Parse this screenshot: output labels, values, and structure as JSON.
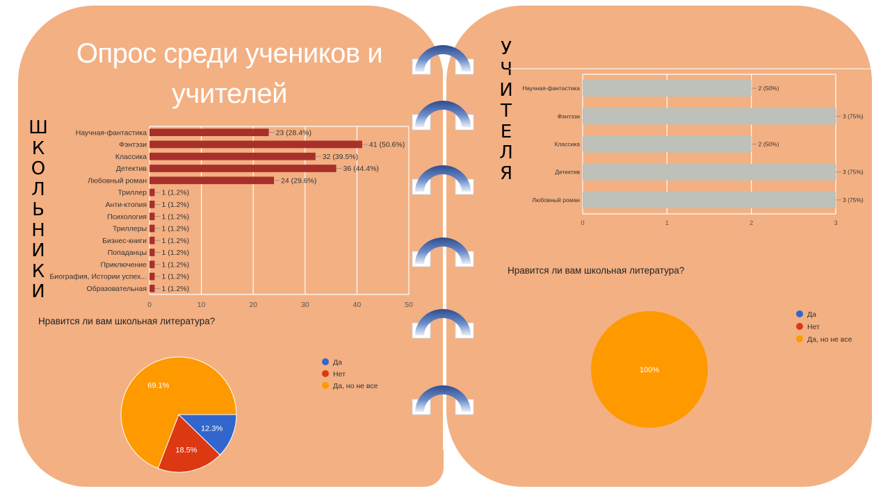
{
  "slide": {
    "title": "Опрос среди учеников и учителей",
    "students_label": "ШКОЛЬНИКИ",
    "teachers_label": "УЧИТЕЛЯ"
  },
  "colors": {
    "panel": "#f3b083",
    "student_bar": "#a8302b",
    "teacher_bar": "#bdc1b9",
    "pie_yes": "#3366cc",
    "pie_no": "#dc3912",
    "pie_partly": "#ff9900"
  },
  "chart_data": [
    {
      "type": "bar",
      "orientation": "horizontal",
      "categories": [
        "Научная-фантастика",
        "Фэнтэзи",
        "Классика",
        "Детектив",
        "Любовный роман",
        "Триллер",
        "Анти-ктопия",
        "Психология",
        "Триллеры",
        "Бизнес-книги",
        "Попаданцы",
        "Приключение",
        "Биография, Истории успех...",
        "Образовательная"
      ],
      "values": [
        23,
        41,
        32,
        36,
        24,
        1,
        1,
        1,
        1,
        1,
        1,
        1,
        1,
        1
      ],
      "data_labels": [
        "23 (28.4%)",
        "41 (50.6%)",
        "32 (39.5%)",
        "36 (44.4%)",
        "24 (29.6%)",
        "1 (1.2%)",
        "1 (1.2%)",
        "1 (1.2%)",
        "1 (1.2%)",
        "1 (1.2%)",
        "1 (1.2%)",
        "1 (1.2%)",
        "1 (1.2%)",
        "1 (1.2%)"
      ],
      "xlim": [
        0,
        50
      ],
      "xticks": [
        "0",
        "10",
        "20",
        "30",
        "40",
        "50"
      ],
      "grid": true
    },
    {
      "type": "pie",
      "title": "Нравится ли вам школьная литература?",
      "labels": [
        "Да",
        "Нет",
        "Да, но не все"
      ],
      "values": [
        12.3,
        18.5,
        69.1
      ],
      "slice_labels": [
        "12.3%",
        "18.5%",
        "69.1%"
      ],
      "legend_position": "right"
    },
    {
      "type": "bar",
      "orientation": "horizontal",
      "categories": [
        "Научная-фантастика",
        "Фэнтэзи",
        "Классика",
        "Детектив",
        "Любовный роман"
      ],
      "values": [
        2,
        3,
        2,
        3,
        3
      ],
      "data_labels": [
        "2 (50%)",
        "3 (75%)",
        "2 (50%)",
        "3 (75%)",
        "3 (75%)"
      ],
      "xlim": [
        0,
        3
      ],
      "xticks": [
        "0",
        "1",
        "2",
        "3"
      ],
      "grid": true
    },
    {
      "type": "pie",
      "title": "Нравится ли вам школьная литература?",
      "labels": [
        "Да",
        "Нет",
        "Да, но не все"
      ],
      "values": [
        0,
        0,
        100
      ],
      "slice_labels": [
        "",
        "",
        "100%"
      ],
      "legend_position": "right"
    }
  ]
}
